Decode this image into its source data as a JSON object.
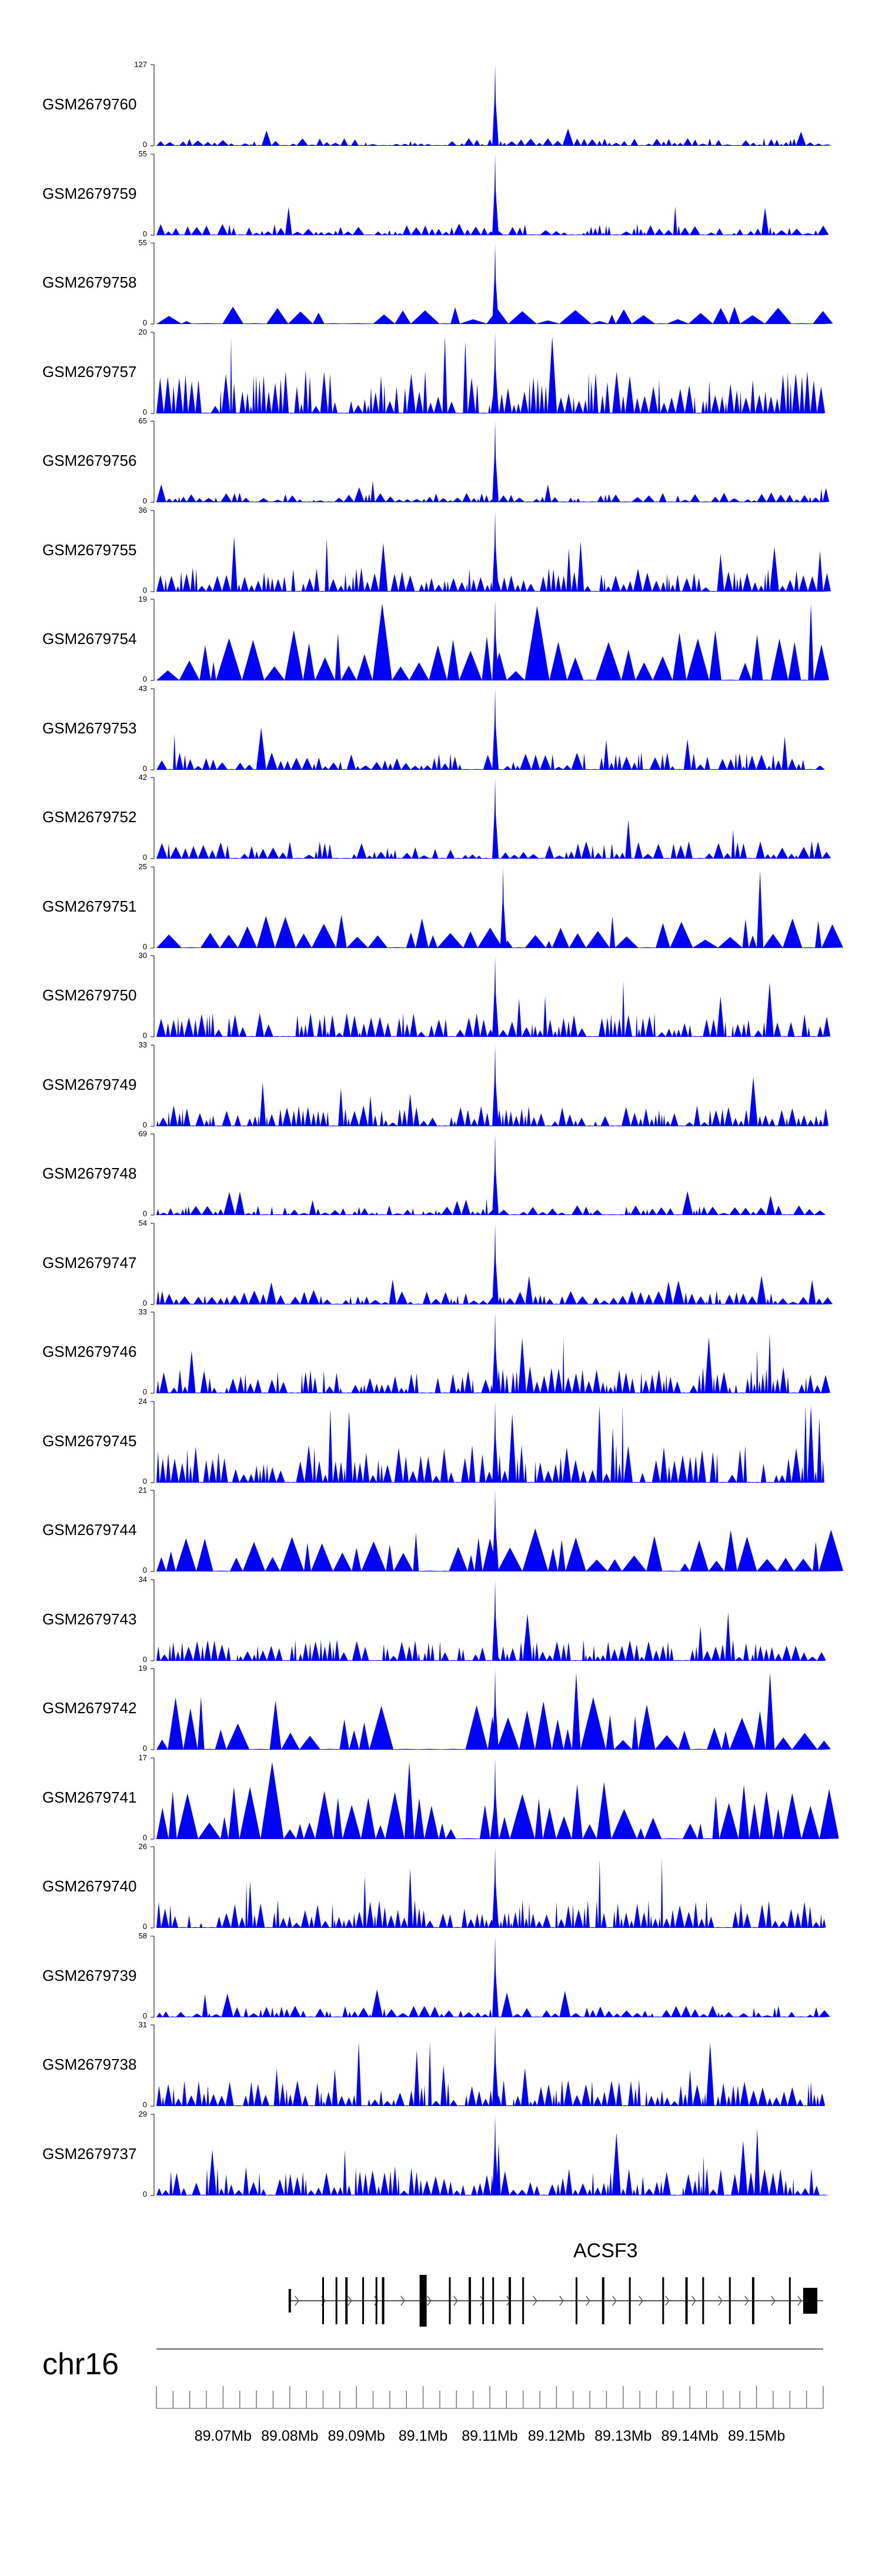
{
  "chart_data": {
    "type": "area",
    "title": "",
    "fill_color": "#0000ff",
    "x_range": [
      89060000,
      89160000
    ],
    "tracks": [
      {
        "name": "GSM2679760",
        "max": 127,
        "peak_x": 89110800,
        "baseline": 0.08,
        "shape": "low"
      },
      {
        "name": "GSM2679759",
        "max": 55,
        "peak_x": 89110800,
        "baseline": 0.12,
        "shape": "low"
      },
      {
        "name": "GSM2679758",
        "max": 55,
        "peak_x": 89110800,
        "baseline": 0.18,
        "shape": "sparse"
      },
      {
        "name": "GSM2679757",
        "max": 20,
        "peak_x": 89110800,
        "baseline": 0.45,
        "shape": "dense"
      },
      {
        "name": "GSM2679756",
        "max": 65,
        "peak_x": 89110800,
        "baseline": 0.1,
        "shape": "low"
      },
      {
        "name": "GSM2679755",
        "max": 36,
        "peak_x": 89110800,
        "baseline": 0.25,
        "shape": "dense"
      },
      {
        "name": "GSM2679754",
        "max": 19,
        "peak_x": 89110800,
        "baseline": 0.55,
        "shape": "wide"
      },
      {
        "name": "GSM2679753",
        "max": 43,
        "peak_x": 89110800,
        "baseline": 0.18,
        "shape": "low"
      },
      {
        "name": "GSM2679752",
        "max": 42,
        "peak_x": 89110800,
        "baseline": 0.18,
        "shape": "low"
      },
      {
        "name": "GSM2679751",
        "max": 25,
        "peak_x": 89112000,
        "baseline": 0.35,
        "shape": "wide"
      },
      {
        "name": "GSM2679750",
        "max": 30,
        "peak_x": 89110800,
        "baseline": 0.25,
        "shape": "dense"
      },
      {
        "name": "GSM2679749",
        "max": 33,
        "peak_x": 89110800,
        "baseline": 0.22,
        "shape": "dense"
      },
      {
        "name": "GSM2679748",
        "max": 69,
        "peak_x": 89110800,
        "baseline": 0.1,
        "shape": "low"
      },
      {
        "name": "GSM2679747",
        "max": 54,
        "peak_x": 89110800,
        "baseline": 0.15,
        "shape": "low"
      },
      {
        "name": "GSM2679746",
        "max": 33,
        "peak_x": 89110800,
        "baseline": 0.28,
        "shape": "dense"
      },
      {
        "name": "GSM2679745",
        "max": 24,
        "peak_x": 89110800,
        "baseline": 0.4,
        "shape": "dense"
      },
      {
        "name": "GSM2679744",
        "max": 21,
        "peak_x": 89110800,
        "baseline": 0.45,
        "shape": "wide"
      },
      {
        "name": "GSM2679743",
        "max": 34,
        "peak_x": 89110800,
        "baseline": 0.22,
        "shape": "dense"
      },
      {
        "name": "GSM2679742",
        "max": 19,
        "peak_x": 89110800,
        "baseline": 0.55,
        "shape": "wide"
      },
      {
        "name": "GSM2679741",
        "max": 17,
        "peak_x": 89110800,
        "baseline": 0.6,
        "shape": "wide"
      },
      {
        "name": "GSM2679740",
        "max": 26,
        "peak_x": 89110800,
        "baseline": 0.3,
        "shape": "dense"
      },
      {
        "name": "GSM2679739",
        "max": 58,
        "peak_x": 89110800,
        "baseline": 0.12,
        "shape": "low"
      },
      {
        "name": "GSM2679738",
        "max": 31,
        "peak_x": 89110800,
        "baseline": 0.28,
        "shape": "dense"
      },
      {
        "name": "GSM2679737",
        "max": 29,
        "peak_x": 89110800,
        "baseline": 0.3,
        "shape": "dense"
      }
    ],
    "zero_label": "0",
    "gene": {
      "name": "ACSF3",
      "start": 89080000,
      "end": 89160000,
      "strand": "+",
      "exons": [
        89080000,
        89085000,
        89087000,
        89088500,
        89091000,
        89093000,
        89094000,
        89100000,
        89104000,
        89107000,
        89109000,
        89110500,
        89113000,
        89115000,
        89123000,
        89127000,
        89131000,
        89136000,
        89139500,
        89142000,
        89146000,
        89149500,
        89155000,
        89157000
      ]
    },
    "chromosome": "chr16",
    "axis_ticks": [
      "89.07Mb",
      "89.08Mb",
      "89.09Mb",
      "89.1Mb",
      "89.11Mb",
      "89.12Mb",
      "89.13Mb",
      "89.14Mb",
      "89.15Mb"
    ],
    "axis_tick_values": [
      89070000,
      89080000,
      89090000,
      89100000,
      89110000,
      89120000,
      89130000,
      89140000,
      89150000
    ]
  }
}
